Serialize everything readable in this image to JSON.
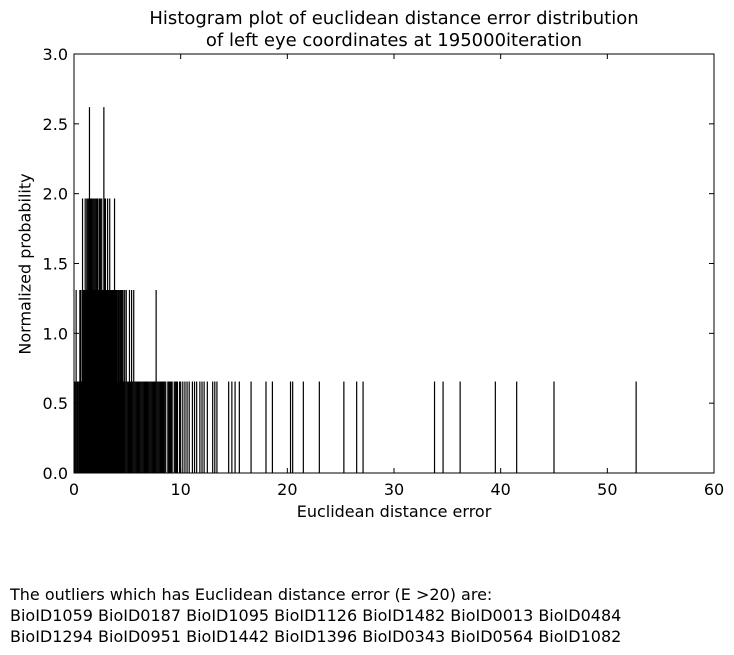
{
  "chart_data": {
    "type": "bar",
    "title_lines": [
      "Histogram plot of euclidean distance error distribution",
      "of left eye coordinates at 195000iteration"
    ],
    "xlabel": "Euclidean distance error",
    "ylabel": "Normalized probability",
    "xlim": [
      0,
      60
    ],
    "ylim": [
      0,
      3.0
    ],
    "xticks": [
      "0",
      "10",
      "20",
      "30",
      "40",
      "50",
      "60"
    ],
    "yticks": [
      "0.0",
      "0.5",
      "1.0",
      "1.5",
      "2.0",
      "2.5",
      "3.0"
    ],
    "grid": false,
    "bar_color": "#000000",
    "level_unit": 0.655,
    "bars": [
      [
        0.1,
        1
      ],
      [
        0.2,
        2
      ],
      [
        0.3,
        1
      ],
      [
        0.35,
        1
      ],
      [
        0.4,
        1
      ],
      [
        0.5,
        1
      ],
      [
        0.55,
        2
      ],
      [
        0.6,
        2
      ],
      [
        0.7,
        1
      ],
      [
        0.75,
        2
      ],
      [
        0.8,
        3
      ],
      [
        0.85,
        2
      ],
      [
        0.9,
        1
      ],
      [
        0.95,
        2
      ],
      [
        1.0,
        2
      ],
      [
        1.05,
        3
      ],
      [
        1.1,
        2
      ],
      [
        1.15,
        2
      ],
      [
        1.2,
        3
      ],
      [
        1.25,
        2
      ],
      [
        1.3,
        3
      ],
      [
        1.35,
        2
      ],
      [
        1.4,
        3
      ],
      [
        1.45,
        4
      ],
      [
        1.5,
        3
      ],
      [
        1.55,
        2
      ],
      [
        1.6,
        3
      ],
      [
        1.65,
        3
      ],
      [
        1.7,
        2
      ],
      [
        1.75,
        3
      ],
      [
        1.8,
        2
      ],
      [
        1.85,
        3
      ],
      [
        1.9,
        2
      ],
      [
        1.95,
        3
      ],
      [
        2.0,
        2
      ],
      [
        2.05,
        3
      ],
      [
        2.1,
        2
      ],
      [
        2.15,
        3
      ],
      [
        2.2,
        2
      ],
      [
        2.25,
        3
      ],
      [
        2.3,
        2
      ],
      [
        2.35,
        2
      ],
      [
        2.4,
        3
      ],
      [
        2.45,
        2
      ],
      [
        2.5,
        3
      ],
      [
        2.55,
        2
      ],
      [
        2.6,
        3
      ],
      [
        2.65,
        2
      ],
      [
        2.7,
        2
      ],
      [
        2.75,
        2
      ],
      [
        2.8,
        4
      ],
      [
        2.85,
        3
      ],
      [
        2.9,
        2
      ],
      [
        2.95,
        3
      ],
      [
        3.0,
        2
      ],
      [
        3.05,
        2
      ],
      [
        3.1,
        2
      ],
      [
        3.15,
        3
      ],
      [
        3.2,
        2
      ],
      [
        3.25,
        2
      ],
      [
        3.3,
        2
      ],
      [
        3.35,
        3
      ],
      [
        3.4,
        2
      ],
      [
        3.45,
        2
      ],
      [
        3.5,
        2
      ],
      [
        3.55,
        2
      ],
      [
        3.6,
        2
      ],
      [
        3.65,
        2
      ],
      [
        3.7,
        2
      ],
      [
        3.75,
        2
      ],
      [
        3.8,
        3
      ],
      [
        3.85,
        2
      ],
      [
        3.9,
        2
      ],
      [
        3.95,
        2
      ],
      [
        4.0,
        2
      ],
      [
        4.05,
        2
      ],
      [
        4.1,
        1
      ],
      [
        4.15,
        2
      ],
      [
        4.2,
        2
      ],
      [
        4.25,
        1
      ],
      [
        4.3,
        2
      ],
      [
        4.35,
        2
      ],
      [
        4.4,
        1
      ],
      [
        4.45,
        2
      ],
      [
        4.5,
        1
      ],
      [
        4.55,
        2
      ],
      [
        4.6,
        2
      ],
      [
        4.65,
        1
      ],
      [
        4.7,
        1
      ],
      [
        4.75,
        2
      ],
      [
        4.8,
        1
      ],
      [
        4.9,
        2
      ],
      [
        5.0,
        1
      ],
      [
        5.1,
        1
      ],
      [
        5.2,
        2
      ],
      [
        5.3,
        1
      ],
      [
        5.4,
        2
      ],
      [
        5.5,
        1
      ],
      [
        5.6,
        2
      ],
      [
        5.7,
        1
      ],
      [
        5.8,
        1
      ],
      [
        5.9,
        1
      ],
      [
        6.0,
        1
      ],
      [
        6.1,
        1
      ],
      [
        6.2,
        1
      ],
      [
        6.3,
        1
      ],
      [
        6.4,
        1
      ],
      [
        6.5,
        1
      ],
      [
        6.6,
        1
      ],
      [
        6.7,
        1
      ],
      [
        6.8,
        1
      ],
      [
        6.9,
        1
      ],
      [
        7.0,
        1
      ],
      [
        7.1,
        1
      ],
      [
        7.2,
        1
      ],
      [
        7.3,
        1
      ],
      [
        7.4,
        1
      ],
      [
        7.5,
        1
      ],
      [
        7.6,
        1
      ],
      [
        7.7,
        2
      ],
      [
        7.8,
        1
      ],
      [
        7.9,
        1
      ],
      [
        8.0,
        1
      ],
      [
        8.1,
        1
      ],
      [
        8.2,
        1
      ],
      [
        8.3,
        1
      ],
      [
        8.4,
        1
      ],
      [
        8.5,
        1
      ],
      [
        8.6,
        1
      ],
      [
        8.8,
        1
      ],
      [
        8.9,
        1
      ],
      [
        9.0,
        1
      ],
      [
        9.1,
        1
      ],
      [
        9.2,
        1
      ],
      [
        9.4,
        1
      ],
      [
        9.5,
        1
      ],
      [
        9.6,
        1
      ],
      [
        9.7,
        1
      ],
      [
        9.9,
        1
      ],
      [
        10.0,
        1
      ],
      [
        10.2,
        1
      ],
      [
        10.4,
        1
      ],
      [
        10.6,
        1
      ],
      [
        10.8,
        1
      ],
      [
        11.1,
        1
      ],
      [
        11.3,
        1
      ],
      [
        11.5,
        1
      ],
      [
        11.8,
        1
      ],
      [
        12.0,
        1
      ],
      [
        12.2,
        1
      ],
      [
        12.5,
        1
      ],
      [
        13.0,
        1
      ],
      [
        13.2,
        1
      ],
      [
        13.4,
        1
      ],
      [
        14.5,
        1
      ],
      [
        14.8,
        1
      ],
      [
        15.1,
        1
      ],
      [
        15.5,
        1
      ],
      [
        16.6,
        1
      ],
      [
        18.0,
        1
      ],
      [
        18.6,
        1
      ],
      [
        20.3,
        1
      ],
      [
        20.5,
        1
      ],
      [
        21.5,
        1
      ],
      [
        23.0,
        1
      ],
      [
        25.3,
        1
      ],
      [
        26.5,
        1
      ],
      [
        27.1,
        1
      ],
      [
        33.8,
        1
      ],
      [
        34.6,
        1
      ],
      [
        36.2,
        1
      ],
      [
        39.5,
        1
      ],
      [
        41.5,
        1
      ],
      [
        45.0,
        1
      ],
      [
        52.7,
        1
      ]
    ]
  },
  "note": {
    "line1": "The outliers which has Euclidean distance error (E >20) are:",
    "line2": "BioID1059 BioID0187 BioID1095 BioID1126 BioID1482 BioID0013 BioID0484",
    "line3": "BioID1294 BioID0951 BioID1442 BioID1396 BioID0343 BioID0564 BioID1082"
  }
}
